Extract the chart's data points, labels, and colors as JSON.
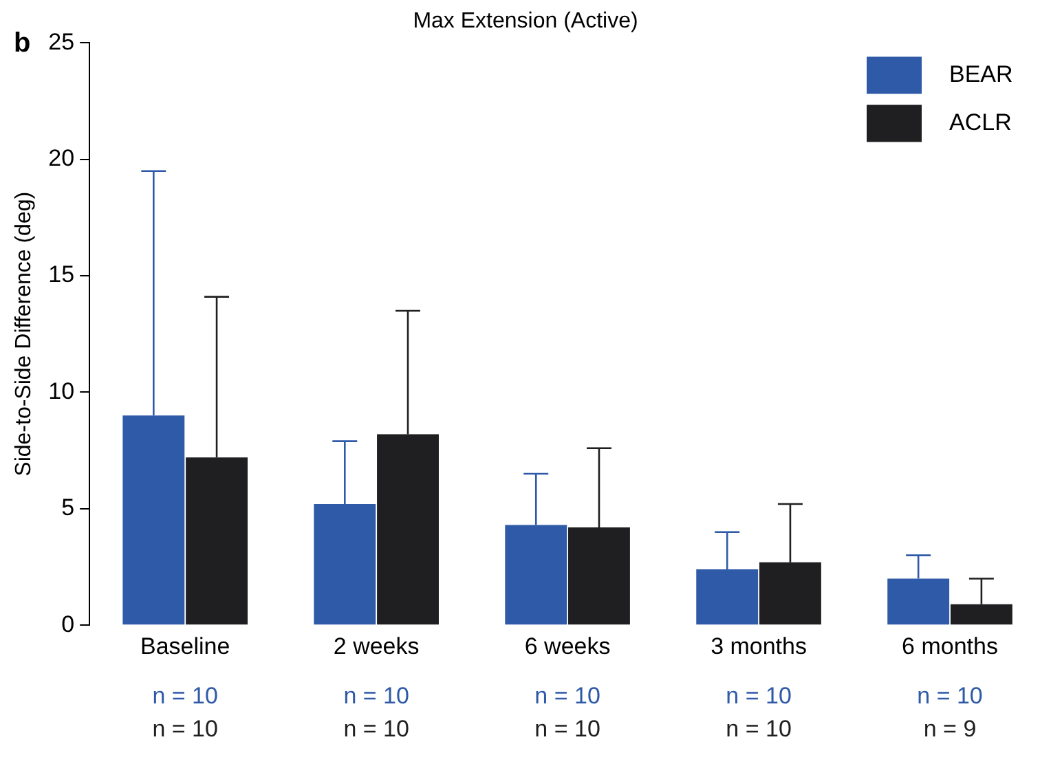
{
  "chart_data": {
    "type": "bar",
    "title": "Max Extension (Active)",
    "ylabel": "Side-to-Side Difference (deg)",
    "categories": [
      "Baseline",
      "2 weeks",
      "6 weeks",
      "3 months",
      "6 months"
    ],
    "series": [
      {
        "name": "BEAR",
        "color": "#2f5aa8",
        "values": [
          9.0,
          5.2,
          4.3,
          2.4,
          2.0
        ],
        "errors": [
          [
            9.0,
            19.5
          ],
          [
            5.2,
            7.9
          ],
          [
            4.3,
            6.5
          ],
          [
            2.4,
            4.0
          ],
          [
            2.0,
            3.0
          ]
        ]
      },
      {
        "name": "ACLR",
        "color": "#1f1f21",
        "values": [
          7.2,
          8.2,
          4.2,
          2.7,
          0.9
        ],
        "errors": [
          [
            7.2,
            14.1
          ],
          [
            8.2,
            13.5
          ],
          [
            4.2,
            7.6
          ],
          [
            2.7,
            5.2
          ],
          [
            0.9,
            2.0
          ]
        ]
      }
    ],
    "ylim": [
      0,
      25
    ],
    "yticks": [
      0,
      5,
      10,
      15,
      20,
      25
    ],
    "grid": false,
    "legend": "top right",
    "annotations": [
      "b",
      "n = 10",
      "n = 10",
      "n = 10",
      "n = 10",
      "n = 10",
      "n = 10",
      "n = 10",
      "n = 10",
      "n = 10",
      "n = 9"
    ]
  }
}
